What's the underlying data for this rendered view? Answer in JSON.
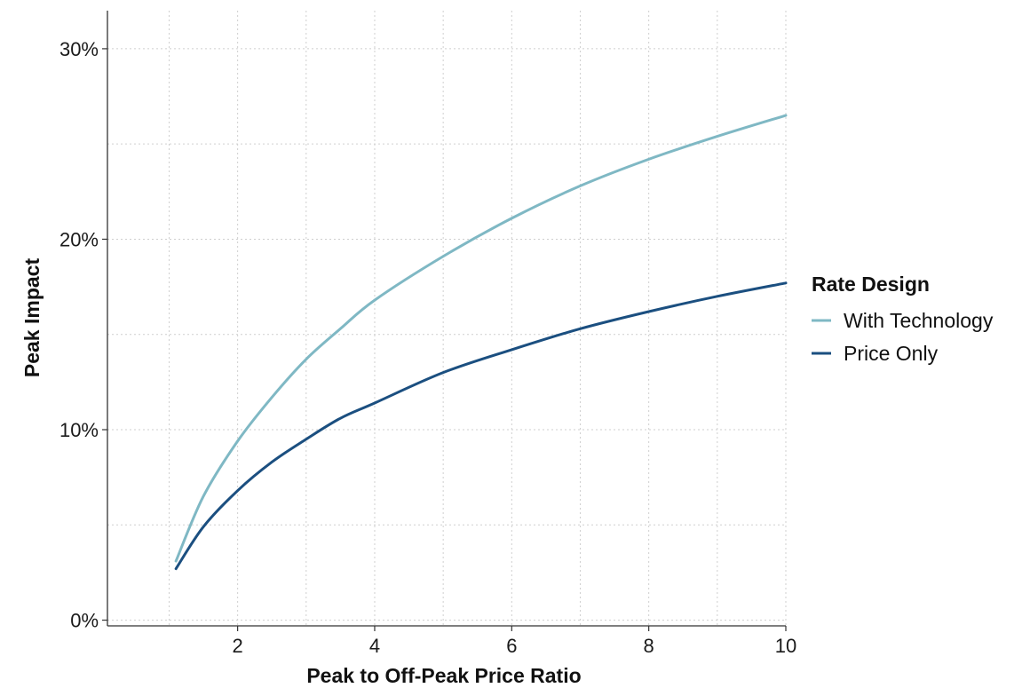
{
  "chart_data": {
    "type": "line",
    "title": "",
    "xlabel": "Peak to Off-Peak Price Ratio",
    "ylabel": "Peak Impact",
    "xlim": [
      0.1,
      10
    ],
    "ylim": [
      -0.003,
      0.32
    ],
    "x_ticks": [
      2,
      4,
      6,
      8,
      10
    ],
    "x_tick_labels": [
      "2",
      "4",
      "6",
      "8",
      "10"
    ],
    "y_ticks": [
      0,
      0.1,
      0.2,
      0.3
    ],
    "y_tick_labels": [
      "0%",
      "10%",
      "20%",
      "30%"
    ],
    "grid": true,
    "legend": {
      "title": "Rate Design",
      "position": "right"
    },
    "series": [
      {
        "name": "With Technology",
        "color": "#7fb8c4",
        "x": [
          1.1,
          1.5,
          2,
          2.5,
          3,
          3.5,
          4,
          5,
          6,
          7,
          8,
          9,
          10
        ],
        "values": [
          0.031,
          0.065,
          0.094,
          0.117,
          0.137,
          0.153,
          0.168,
          0.191,
          0.211,
          0.228,
          0.242,
          0.254,
          0.265
        ]
      },
      {
        "name": "Price Only",
        "color": "#1b4f80",
        "x": [
          1.1,
          1.5,
          2,
          2.5,
          3,
          3.5,
          4,
          5,
          6,
          7,
          8,
          9,
          10
        ],
        "values": [
          0.027,
          0.049,
          0.068,
          0.083,
          0.095,
          0.106,
          0.114,
          0.13,
          0.142,
          0.153,
          0.162,
          0.17,
          0.177
        ]
      }
    ]
  }
}
